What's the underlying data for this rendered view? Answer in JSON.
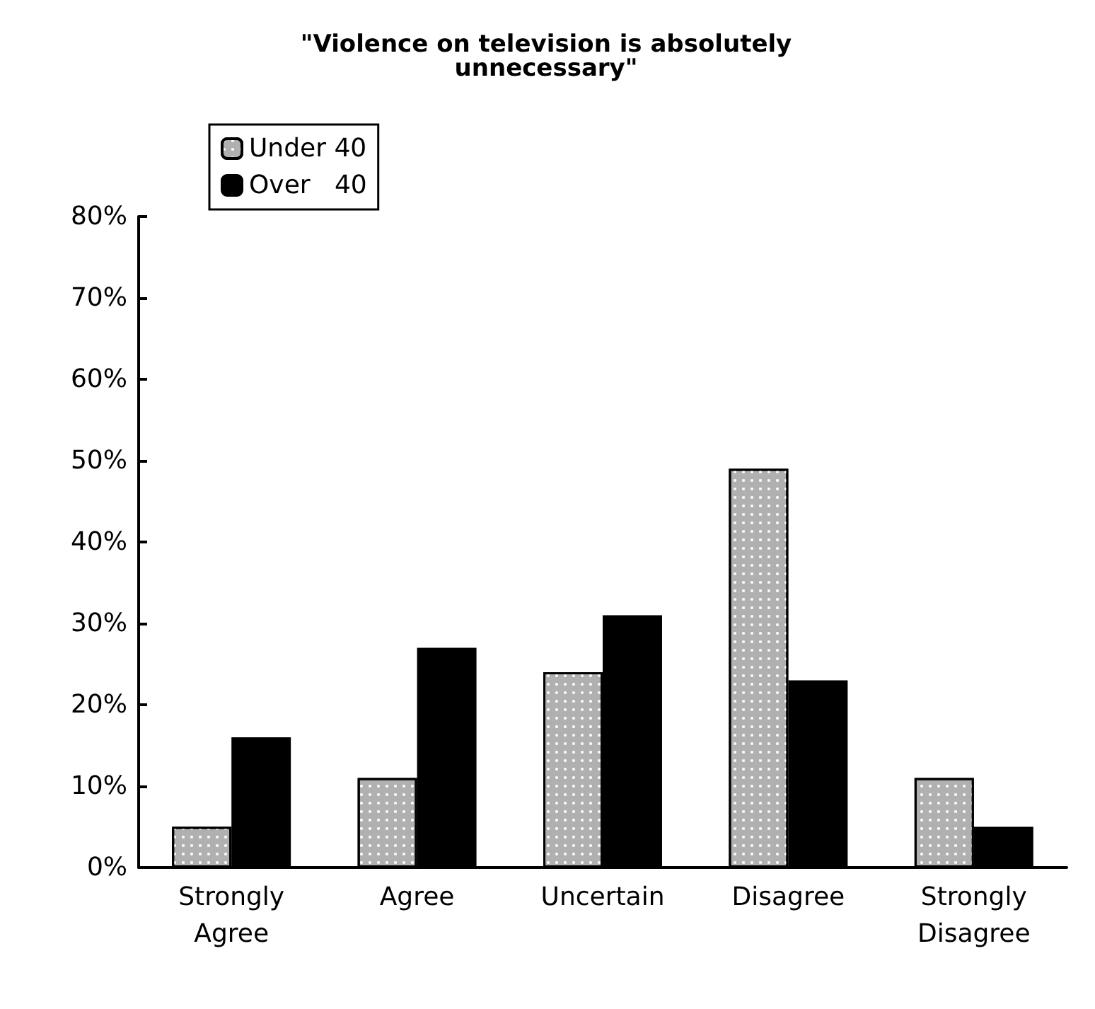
{
  "chart_data": {
    "type": "bar",
    "title": "\"Violence on television is absolutely\nunnecessary\"",
    "categories": [
      "Strongly\nAgree",
      "Agree",
      "Uncertain",
      "Disagree",
      "Strongly\nDisagree"
    ],
    "series": [
      {
        "name": "Under 40",
        "color": "#b0b0b0",
        "values": [
          5,
          11,
          24,
          49,
          11
        ]
      },
      {
        "name": "Over   40",
        "color": "#000000",
        "values": [
          16,
          27,
          31,
          23,
          5
        ]
      }
    ],
    "ylim": [
      0,
      80
    ],
    "yticks": [
      {
        "value": 0,
        "label": "0%"
      },
      {
        "value": 10,
        "label": "10%"
      },
      {
        "value": 20,
        "label": "20%"
      },
      {
        "value": 30,
        "label": "30%"
      },
      {
        "value": 40,
        "label": "40%"
      },
      {
        "value": 50,
        "label": "50%"
      },
      {
        "value": 60,
        "label": "60%"
      },
      {
        "value": 70,
        "label": "70%"
      },
      {
        "value": 80,
        "label": "80%"
      }
    ],
    "grid": false,
    "legend": "top left"
  }
}
